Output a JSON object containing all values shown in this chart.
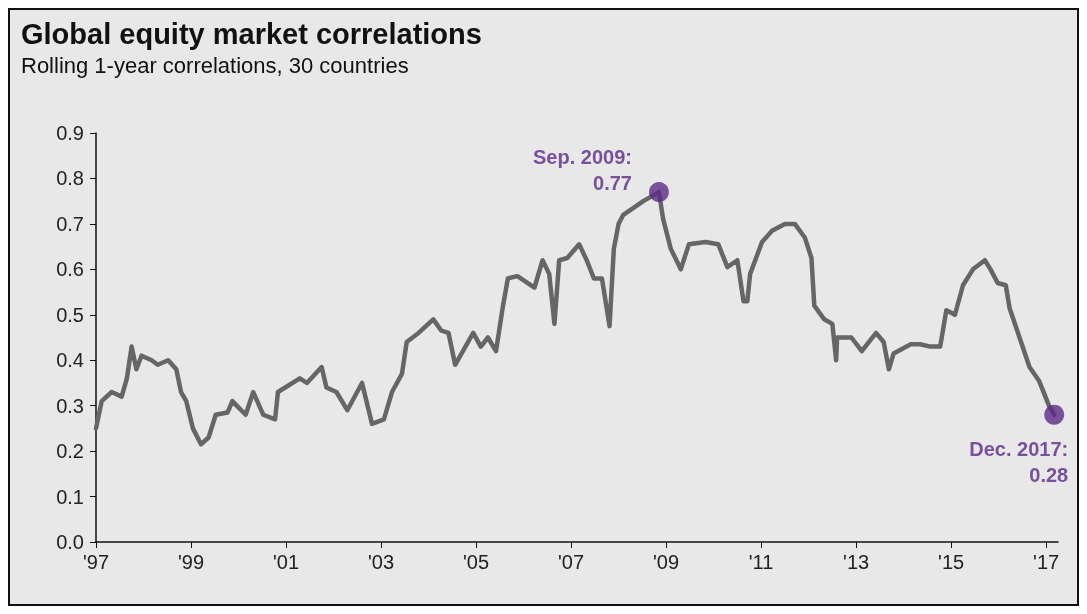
{
  "chart_data": {
    "type": "line",
    "title": "Global equity market correlations",
    "subtitle": "Rolling 1-year correlations, 30 countries",
    "series": [
      {
        "color": "#666666",
        "x": [
          1997.0,
          1997.12,
          1997.33,
          1997.54,
          1997.65,
          1997.75,
          1997.85,
          1997.96,
          1998.17,
          1998.3,
          1998.52,
          1998.69,
          1998.79,
          1998.9,
          1999.04,
          1999.21,
          1999.37,
          1999.52,
          1999.77,
          1999.87,
          2000.15,
          2000.31,
          2000.52,
          2000.77,
          2000.83,
          2001.29,
          2001.44,
          2001.75,
          2001.85,
          2002.06,
          2002.29,
          2002.6,
          2002.81,
          2003.06,
          2003.23,
          2003.44,
          2003.54,
          2003.79,
          2004.1,
          2004.27,
          2004.42,
          2004.56,
          2004.94,
          2005.1,
          2005.25,
          2005.42,
          2005.56,
          2005.67,
          2005.87,
          2006.23,
          2006.4,
          2006.54,
          2006.65,
          2006.75,
          2006.92,
          2007.17,
          2007.33,
          2007.48,
          2007.65,
          2007.81,
          2007.9,
          2008.0,
          2008.1,
          2008.52,
          2008.85,
          2008.94,
          2009.1,
          2009.31,
          2009.48,
          2009.83,
          2010.1,
          2010.29,
          2010.5,
          2010.63,
          2010.71,
          2010.77,
          2011.02,
          2011.23,
          2011.5,
          2011.71,
          2011.92,
          2012.06,
          2012.12,
          2012.33,
          2012.5,
          2012.58,
          2012.6,
          2012.9,
          2013.12,
          2013.42,
          2013.58,
          2013.69,
          2013.79,
          2014.15,
          2014.35,
          2014.56,
          2014.77,
          2014.9,
          2015.08,
          2015.25,
          2015.46,
          2015.71,
          2015.83,
          2015.98,
          2016.15,
          2016.23,
          2016.44,
          2016.65,
          2016.85,
          2017.06,
          2017.17
        ],
        "values": [
          0.25,
          0.31,
          0.33,
          0.32,
          0.36,
          0.43,
          0.38,
          0.41,
          0.4,
          0.39,
          0.4,
          0.38,
          0.33,
          0.31,
          0.25,
          0.215,
          0.23,
          0.28,
          0.285,
          0.31,
          0.28,
          0.33,
          0.28,
          0.27,
          0.33,
          0.36,
          0.35,
          0.385,
          0.34,
          0.33,
          0.29,
          0.35,
          0.26,
          0.27,
          0.33,
          0.37,
          0.44,
          0.46,
          0.49,
          0.465,
          0.46,
          0.39,
          0.46,
          0.43,
          0.45,
          0.42,
          0.515,
          0.58,
          0.585,
          0.56,
          0.62,
          0.59,
          0.48,
          0.62,
          0.625,
          0.655,
          0.62,
          0.58,
          0.58,
          0.475,
          0.645,
          0.7,
          0.72,
          0.75,
          0.77,
          0.71,
          0.645,
          0.6,
          0.655,
          0.66,
          0.655,
          0.605,
          0.62,
          0.53,
          0.53,
          0.59,
          0.66,
          0.685,
          0.7,
          0.7,
          0.67,
          0.625,
          0.52,
          0.49,
          0.48,
          0.4,
          0.45,
          0.45,
          0.42,
          0.46,
          0.44,
          0.38,
          0.415,
          0.435,
          0.435,
          0.43,
          0.43,
          0.51,
          0.5,
          0.565,
          0.6,
          0.62,
          0.6,
          0.57,
          0.565,
          0.515,
          0.45,
          0.385,
          0.355,
          0.3,
          0.28
        ]
      }
    ],
    "annotations": [
      {
        "text": "Sep. 2009:\n0.77",
        "x": 2008.85,
        "y": 0.77
      },
      {
        "text": "Dec. 2017:\n0.28",
        "x": 2017.17,
        "y": 0.28
      }
    ],
    "xlim": [
      1997,
      2017.25
    ],
    "xticks": [
      {
        "value": 1997,
        "label": "'97"
      },
      {
        "value": 1999,
        "label": "'99"
      },
      {
        "value": 2001,
        "label": "'01"
      },
      {
        "value": 2003,
        "label": "'03"
      },
      {
        "value": 2005,
        "label": "'05"
      },
      {
        "value": 2007,
        "label": "'07"
      },
      {
        "value": 2009,
        "label": "'09"
      },
      {
        "value": 2011,
        "label": "'11"
      },
      {
        "value": 2013,
        "label": "'13"
      },
      {
        "value": 2015,
        "label": "'15"
      },
      {
        "value": 2017,
        "label": "'17"
      }
    ],
    "ylim": [
      0,
      0.9
    ],
    "yticks": [
      {
        "value": 0,
        "label": "0.0"
      },
      {
        "value": 0.1,
        "label": "0.1"
      },
      {
        "value": 0.2,
        "label": "0.2"
      },
      {
        "value": 0.3,
        "label": "0.3"
      },
      {
        "value": 0.4,
        "label": "0.4"
      },
      {
        "value": 0.5,
        "label": "0.5"
      },
      {
        "value": 0.6,
        "label": "0.6"
      },
      {
        "value": 0.7,
        "label": "0.7"
      },
      {
        "value": 0.8,
        "label": "0.8"
      },
      {
        "value": 0.9,
        "label": "0.9"
      }
    ],
    "grid": false,
    "marker": "none",
    "line_style": "solid"
  }
}
